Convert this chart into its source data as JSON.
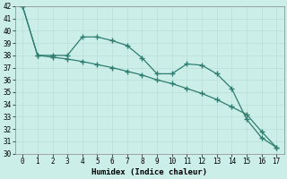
{
  "xlabel": "Humidex (Indice chaleur)",
  "x": [
    0,
    1,
    2,
    3,
    4,
    5,
    6,
    7,
    8,
    9,
    10,
    11,
    12,
    13,
    14,
    15,
    16,
    17
  ],
  "line1_y": [
    42,
    38,
    38,
    38,
    39.5,
    39.5,
    39.2,
    38.8,
    37.8,
    36.5,
    36.5,
    37.3,
    37.2,
    36.5,
    35.3,
    32.8,
    31.3,
    30.5
  ],
  "line2_y": [
    42,
    38,
    37.85,
    37.7,
    37.5,
    37.25,
    37.0,
    36.7,
    36.4,
    36.0,
    35.7,
    35.3,
    34.9,
    34.4,
    33.8,
    33.2,
    31.8,
    30.5
  ],
  "ylim": [
    30,
    42
  ],
  "xlim": [
    -0.5,
    17.5
  ],
  "yticks": [
    30,
    31,
    32,
    33,
    34,
    35,
    36,
    37,
    38,
    39,
    40,
    41,
    42
  ],
  "xticks": [
    0,
    1,
    2,
    3,
    4,
    5,
    6,
    7,
    8,
    9,
    10,
    11,
    12,
    13,
    14,
    15,
    16,
    17
  ],
  "line_color": "#2e7d70",
  "bg_color": "#cceee8",
  "grid_major_color": "#b8ddd8",
  "grid_minor_color": "#d4eeea"
}
